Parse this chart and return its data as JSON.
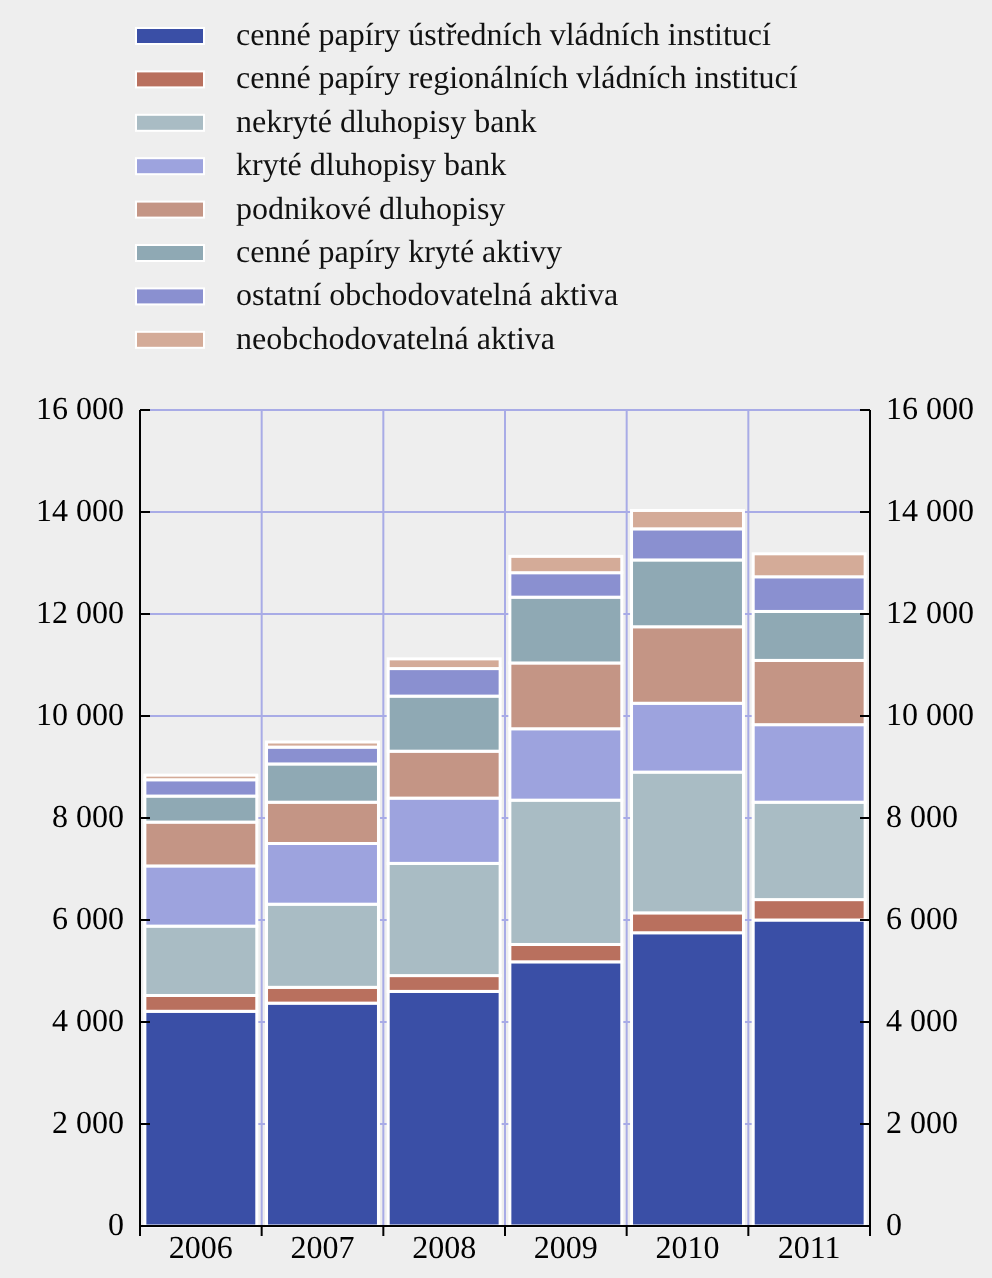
{
  "chart_data": {
    "type": "bar",
    "stacked": true,
    "categories": [
      "2006",
      "2007",
      "2008",
      "2009",
      "2010",
      "2011"
    ],
    "series": [
      {
        "name": "cenné papíry ústředních vládních institucí",
        "color": "#3a4fa6",
        "values": [
          4210,
          4370,
          4600,
          5180,
          5750,
          6000
        ]
      },
      {
        "name": "cenné papíry regionálních vládních institucí",
        "color": "#b9705e",
        "values": [
          310,
          310,
          310,
          340,
          390,
          400
        ]
      },
      {
        "name": "nekryté dluhopisy bank",
        "color": "#a9bcc4",
        "values": [
          1360,
          1630,
          2200,
          2830,
          2760,
          1910
        ]
      },
      {
        "name": "kryté dluhopisy bank",
        "color": "#9da3de",
        "values": [
          1180,
          1190,
          1280,
          1400,
          1350,
          1520
        ]
      },
      {
        "name": "podnikové dluhopisy",
        "color": "#c49585",
        "values": [
          860,
          810,
          920,
          1290,
          1500,
          1260
        ]
      },
      {
        "name": "cenné papíry kryté aktivy",
        "color": "#8fa9b4",
        "values": [
          510,
          750,
          1080,
          1290,
          1310,
          960
        ]
      },
      {
        "name": "ostatní obchodovatelná aktiva",
        "color": "#8a90d0",
        "values": [
          320,
          330,
          540,
          480,
          610,
          680
        ]
      },
      {
        "name": "neobchodovatelná aktiva",
        "color": "#d4ab98",
        "values": [
          90,
          100,
          190,
          320,
          360,
          450
        ]
      }
    ],
    "ylim": [
      0,
      16000
    ],
    "yticks": [
      {
        "value": 0,
        "label": "0"
      },
      {
        "value": 2000,
        "label": "2 000"
      },
      {
        "value": 4000,
        "label": "4 000"
      },
      {
        "value": 6000,
        "label": "6 000"
      },
      {
        "value": 8000,
        "label": "8 000"
      },
      {
        "value": 10000,
        "label": "10 000"
      },
      {
        "value": 12000,
        "label": "12 000"
      },
      {
        "value": 14000,
        "label": "14 000"
      },
      {
        "value": 16000,
        "label": "16 000"
      }
    ],
    "y2lim": [
      0,
      16000
    ],
    "y2ticks": [
      {
        "value": 0,
        "label": "0"
      },
      {
        "value": 2000,
        "label": "2 000"
      },
      {
        "value": 4000,
        "label": "4 000"
      },
      {
        "value": 6000,
        "label": "6 000"
      },
      {
        "value": 8000,
        "label": "8 000"
      },
      {
        "value": 10000,
        "label": "10 000"
      },
      {
        "value": 12000,
        "label": "12 000"
      },
      {
        "value": 14000,
        "label": "14 000"
      },
      {
        "value": 16000,
        "label": "16 000"
      }
    ],
    "grid": true,
    "legend": "top"
  }
}
